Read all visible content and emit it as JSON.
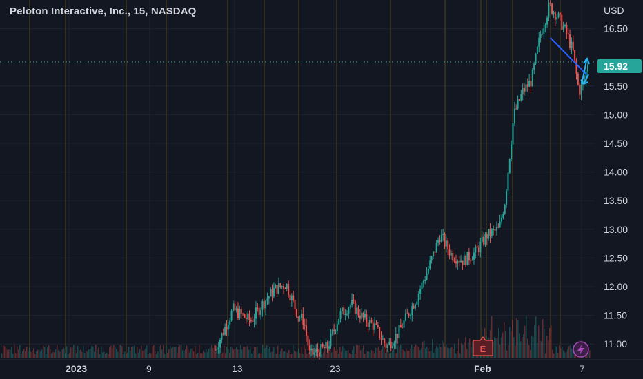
{
  "chart_title": "Peloton Interactive, Inc., 15, NASDAQ",
  "price_axis": {
    "currency": "USD",
    "ticks": [
      "16.50",
      "15.50",
      "15.00",
      "14.50",
      "14.00",
      "13.50",
      "13.00",
      "12.50",
      "12.00",
      "11.50",
      "11.00"
    ]
  },
  "time_axis": {
    "labels": [
      "2023",
      "9",
      "13",
      "23",
      "Feb",
      "7"
    ]
  },
  "last_price": {
    "value": "15.92"
  },
  "markers": {
    "earnings_label": "E"
  },
  "colors": {
    "background": "#131722",
    "up": "#26a69a",
    "down": "#ef5350",
    "badge": "#26a69a",
    "session_lines": "#4a3f1d",
    "trendline": "#2962ff",
    "arrow": "#29b6f6",
    "flash_icon": "#ab47bc"
  },
  "icons": [
    "earnings-flag-icon",
    "lightning-icon",
    "arrow-up-icon",
    "arrow-down-icon"
  ],
  "chart_data": {
    "type": "candlestick",
    "title": "Peloton Interactive, Inc., 15, NASDAQ",
    "ylabel": "USD",
    "ylim": [
      10.75,
      17.0
    ],
    "last_price": 15.92,
    "x_labels": [
      "2023",
      "9",
      "13",
      "23",
      "Feb",
      "7"
    ],
    "price_path": [
      {
        "t": 0.0,
        "p": 10.9
      },
      {
        "t": 0.2,
        "p": 10.85
      },
      {
        "t": 0.37,
        "p": 10.9
      },
      {
        "t": 0.4,
        "p": 11.6
      },
      {
        "t": 0.43,
        "p": 11.4
      },
      {
        "t": 0.45,
        "p": 11.7
      },
      {
        "t": 0.47,
        "p": 11.95
      },
      {
        "t": 0.49,
        "p": 12.05
      },
      {
        "t": 0.51,
        "p": 11.5
      },
      {
        "t": 0.52,
        "p": 11.4
      },
      {
        "t": 0.53,
        "p": 10.8
      },
      {
        "t": 0.56,
        "p": 10.95
      },
      {
        "t": 0.58,
        "p": 11.5
      },
      {
        "t": 0.6,
        "p": 11.7
      },
      {
        "t": 0.62,
        "p": 11.45
      },
      {
        "t": 0.64,
        "p": 11.3
      },
      {
        "t": 0.66,
        "p": 10.95
      },
      {
        "t": 0.68,
        "p": 11.2
      },
      {
        "t": 0.71,
        "p": 11.8
      },
      {
        "t": 0.73,
        "p": 12.3
      },
      {
        "t": 0.75,
        "p": 12.9
      },
      {
        "t": 0.77,
        "p": 12.55
      },
      {
        "t": 0.79,
        "p": 12.45
      },
      {
        "t": 0.81,
        "p": 12.6
      },
      {
        "t": 0.83,
        "p": 12.9
      },
      {
        "t": 0.85,
        "p": 13.0
      },
      {
        "t": 0.86,
        "p": 13.5
      },
      {
        "t": 0.875,
        "p": 15.0
      },
      {
        "t": 0.89,
        "p": 15.4
      },
      {
        "t": 0.905,
        "p": 15.6
      },
      {
        "t": 0.92,
        "p": 16.4
      },
      {
        "t": 0.935,
        "p": 16.9
      },
      {
        "t": 0.95,
        "p": 16.7
      },
      {
        "t": 0.965,
        "p": 16.4
      },
      {
        "t": 0.975,
        "p": 16.1
      },
      {
        "t": 0.985,
        "p": 15.4
      },
      {
        "t": 0.995,
        "p": 15.6
      },
      {
        "t": 1.0,
        "p": 15.92
      }
    ]
  }
}
